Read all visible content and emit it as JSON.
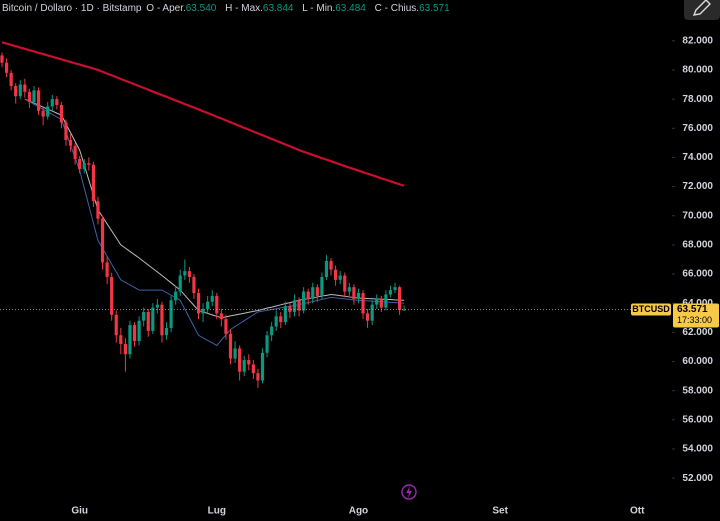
{
  "chart_data": {
    "type": "candlestick",
    "header": {
      "symbol": "Bitcoin / Dollaro · 1D · Bitstamp",
      "fields": [
        {
          "label": "O - Aper.",
          "value": "63.540"
        },
        {
          "label": "H - Max.",
          "value": "63.844"
        },
        {
          "label": "L - Min.",
          "value": "63.484"
        },
        {
          "label": "C - Chius.",
          "value": "63.571"
        }
      ]
    },
    "price_tag": {
      "symbol": "BTCUSD",
      "price": "63.571",
      "countdown": "17:33:00"
    },
    "up_color": "#089981",
    "down_color": "#f23645",
    "grid": false,
    "ylim": [
      50500,
      84800
    ],
    "yticks": [
      {
        "value": 52000,
        "label": "52.000"
      },
      {
        "value": 54000,
        "label": "54.000"
      },
      {
        "value": 56000,
        "label": "56.000"
      },
      {
        "value": 58000,
        "label": "58.000"
      },
      {
        "value": 60000,
        "label": "60.000"
      },
      {
        "value": 62000,
        "label": "62.000"
      },
      {
        "value": 64000,
        "label": "64.000"
      },
      {
        "value": 66000,
        "label": "66.000"
      },
      {
        "value": 68000,
        "label": "68.000"
      },
      {
        "value": 70000,
        "label": "70.000"
      },
      {
        "value": 72000,
        "label": "72.000"
      },
      {
        "value": 74000,
        "label": "74.000"
      },
      {
        "value": 76000,
        "label": "76.000"
      },
      {
        "value": 78000,
        "label": "78.000"
      },
      {
        "value": 80000,
        "label": "80.000"
      },
      {
        "value": 82000,
        "label": "82.000"
      }
    ],
    "categories": [
      null,
      null,
      null,
      null,
      null,
      null,
      null,
      null,
      null,
      null,
      null,
      null,
      null,
      null,
      null,
      null,
      null,
      "Giu",
      null,
      null,
      null,
      null,
      null,
      null,
      null,
      null,
      null,
      null,
      null,
      null,
      null,
      null,
      null,
      null,
      null,
      null,
      null,
      null,
      null,
      null,
      null,
      null,
      null,
      null,
      null,
      null,
      null,
      "Lug",
      null,
      null,
      null,
      null,
      null,
      null,
      null,
      null,
      null,
      null,
      null,
      null,
      null,
      null,
      null,
      null,
      null,
      null,
      null,
      null,
      null,
      null,
      null,
      null,
      null,
      null,
      null,
      null,
      null,
      null,
      "Ago",
      null,
      null,
      null,
      null,
      null,
      null,
      null,
      null,
      null,
      null,
      null,
      null,
      null,
      null,
      null,
      null,
      null,
      null,
      null,
      null,
      null,
      null,
      null,
      null,
      null,
      null,
      null,
      null,
      null,
      null,
      "Set",
      null,
      null,
      null,
      null,
      null,
      null,
      null,
      null,
      null,
      null,
      null,
      null,
      null,
      null,
      null,
      null,
      null,
      null,
      null,
      null,
      null,
      null,
      null,
      null,
      null,
      null,
      null,
      null,
      null,
      "Ott",
      null,
      null,
      null,
      null,
      null,
      null
    ],
    "open": [
      81000,
      80500,
      79800,
      78900,
      78200,
      79000,
      78500,
      77800,
      78600,
      77200,
      76800,
      77500,
      78000,
      77600,
      76400,
      75200,
      74800,
      73900,
      73200,
      73600,
      73500,
      71000,
      69800,
      66800,
      65800,
      63200,
      61800,
      61200,
      60500,
      62500,
      61400,
      62800,
      63400,
      62100,
      63700,
      63900,
      61800,
      62300,
      64200,
      64800,
      65900,
      66200,
      65800,
      64700,
      63300,
      63600,
      64100,
      64500,
      63300,
      62900,
      61900,
      60200,
      60900,
      59300,
      60100,
      59800,
      59200,
      58700,
      60600,
      61800,
      62400,
      63100,
      62700,
      63800,
      63400,
      64200,
      63500,
      64800,
      64300,
      65100,
      64500,
      65800,
      66900,
      66300,
      65600,
      65900,
      64800,
      65100,
      64300,
      64700,
      63300,
      62800,
      63900,
      64300,
      63700,
      64600,
      64900,
      65100,
      63540,
      null,
      null,
      null,
      null,
      null,
      null,
      null,
      null,
      null,
      null,
      null,
      null,
      null,
      null,
      null,
      null,
      null,
      null,
      null,
      null,
      null,
      null,
      null,
      null,
      null,
      null,
      null,
      null,
      null,
      null,
      null,
      null,
      null,
      null,
      null,
      null,
      null,
      null,
      null,
      null,
      null,
      null,
      null,
      null,
      null,
      null,
      null,
      null,
      null,
      null,
      null,
      null,
      null,
      null,
      null,
      null,
      null
    ],
    "high": [
      81200,
      80800,
      80000,
      79100,
      79300,
      79400,
      78700,
      78900,
      78800,
      77500,
      77800,
      78300,
      78200,
      77800,
      76600,
      75600,
      75000,
      74100,
      73900,
      74000,
      73700,
      71300,
      70000,
      67200,
      66100,
      63500,
      62300,
      61600,
      62800,
      62700,
      63100,
      63700,
      63600,
      64000,
      64300,
      64100,
      62700,
      64500,
      65200,
      66300,
      67000,
      66500,
      66000,
      65000,
      64000,
      64500,
      64900,
      64700,
      63600,
      63200,
      62200,
      61400,
      61100,
      60400,
      60500,
      60100,
      59500,
      60900,
      62100,
      62700,
      63500,
      63400,
      64100,
      64000,
      64600,
      64400,
      65100,
      65000,
      65400,
      65300,
      66100,
      67300,
      67100,
      66600,
      66200,
      66100,
      65400,
      65300,
      65000,
      64900,
      63600,
      64200,
      64600,
      64500,
      64900,
      65200,
      65400,
      65200,
      63844,
      null,
      null,
      null,
      null,
      null,
      null,
      null,
      null,
      null,
      null,
      null,
      null,
      null,
      null,
      null,
      null,
      null,
      null,
      null,
      null,
      null,
      null,
      null,
      null,
      null,
      null,
      null,
      null,
      null,
      null,
      null,
      null,
      null,
      null,
      null,
      null,
      null,
      null,
      null,
      null,
      null,
      null,
      null,
      null,
      null,
      null,
      null,
      null,
      null,
      null,
      null,
      null,
      null,
      null,
      null,
      null,
      null
    ],
    "low": [
      80200,
      79500,
      78600,
      77700,
      78000,
      78100,
      77400,
      77600,
      76900,
      76200,
      76600,
      77200,
      77300,
      76000,
      74800,
      74400,
      73500,
      72900,
      72900,
      73100,
      70600,
      69400,
      66300,
      65300,
      62800,
      61300,
      60500,
      59300,
      60200,
      61000,
      61100,
      62400,
      61700,
      61900,
      63300,
      61300,
      61500,
      62000,
      63900,
      64500,
      65600,
      65400,
      64300,
      62900,
      62700,
      63300,
      63800,
      62900,
      62400,
      61500,
      59800,
      59900,
      58700,
      59000,
      59400,
      58800,
      58200,
      58500,
      60300,
      61400,
      62100,
      62300,
      62500,
      63000,
      63100,
      63100,
      63300,
      63900,
      64000,
      64100,
      64300,
      65600,
      65900,
      65200,
      65300,
      64400,
      64500,
      63900,
      64000,
      62900,
      62300,
      62500,
      63600,
      63400,
      63500,
      64400,
      64700,
      63200,
      63484,
      null,
      null,
      null,
      null,
      null,
      null,
      null,
      null,
      null,
      null,
      null,
      null,
      null,
      null,
      null,
      null,
      null,
      null,
      null,
      null,
      null,
      null,
      null,
      null,
      null,
      null,
      null,
      null,
      null,
      null,
      null,
      null,
      null,
      null,
      null,
      null,
      null,
      null,
      null,
      null,
      null,
      null,
      null,
      null,
      null,
      null,
      null,
      null,
      null,
      null,
      null,
      null,
      null,
      null,
      null,
      null,
      null
    ],
    "close": [
      80500,
      79800,
      78900,
      78200,
      79000,
      78500,
      77800,
      78600,
      77200,
      76800,
      77500,
      78000,
      77600,
      76400,
      75200,
      74800,
      73900,
      73200,
      73600,
      73500,
      71000,
      69800,
      66800,
      65800,
      63200,
      61800,
      61200,
      60500,
      62500,
      61400,
      62800,
      63400,
      62100,
      63700,
      63900,
      61800,
      62300,
      64200,
      64800,
      65900,
      66200,
      65800,
      64700,
      63300,
      63600,
      64100,
      64500,
      63300,
      62900,
      61900,
      60200,
      60900,
      59300,
      60100,
      59800,
      59200,
      58700,
      60600,
      61800,
      62400,
      63100,
      62700,
      63800,
      63400,
      64200,
      63500,
      64800,
      64300,
      65100,
      64500,
      65800,
      66900,
      66300,
      65600,
      65900,
      64800,
      65100,
      64300,
      64700,
      63300,
      62800,
      63900,
      64300,
      63700,
      64600,
      64900,
      65100,
      63540,
      63571,
      null,
      null,
      null,
      null,
      null,
      null,
      null,
      null,
      null,
      null,
      null,
      null,
      null,
      null,
      null,
      null,
      null,
      null,
      null,
      null,
      null,
      null,
      null,
      null,
      null,
      null,
      null,
      null,
      null,
      null,
      null,
      null,
      null,
      null,
      null,
      null,
      null,
      null,
      null,
      null,
      null,
      null,
      null,
      null,
      null,
      null,
      null,
      null,
      null,
      null,
      null,
      null,
      null,
      null,
      null,
      null,
      null
    ],
    "moving_averages": [
      {
        "color": "#c8102e",
        "width": 2.2,
        "values": [
          81900,
          81810,
          81720,
          81630,
          81540,
          81450,
          81360,
          81270,
          81180,
          81090,
          81000,
          80910,
          80820,
          80730,
          80640,
          80550,
          80460,
          80370,
          80280,
          80190,
          80100,
          80000,
          79880,
          79750,
          79630,
          79510,
          79380,
          79260,
          79140,
          79020,
          78890,
          78770,
          78650,
          78520,
          78400,
          78280,
          78160,
          78030,
          77910,
          77790,
          77660,
          77540,
          77420,
          77300,
          77170,
          77050,
          76920,
          76790,
          76670,
          76540,
          76410,
          76290,
          76160,
          76030,
          75910,
          75780,
          75650,
          75530,
          75400,
          75270,
          75150,
          75020,
          74890,
          74770,
          74640,
          74500,
          74390,
          74280,
          74170,
          74060,
          73950,
          73850,
          73740,
          73630,
          73520,
          73410,
          73300,
          73200,
          73100,
          72990,
          72890,
          72780,
          72680,
          72570,
          72470,
          72370,
          72260,
          72160,
          72050,
          null,
          null,
          null,
          null,
          null,
          null,
          null,
          null,
          null,
          null,
          null,
          null,
          null,
          null,
          null,
          null,
          null,
          null,
          null,
          null,
          null,
          null,
          null,
          null,
          null,
          null,
          null,
          null,
          null,
          null,
          null,
          null,
          null,
          null,
          null,
          null,
          null,
          null,
          null,
          null,
          null,
          null,
          null,
          null,
          null,
          null,
          null,
          null,
          null,
          null,
          null,
          null,
          null,
          null,
          null,
          null,
          null
        ]
      },
      {
        "color": "#bdbdbd",
        "width": 1,
        "values": [
          null,
          null,
          null,
          null,
          null,
          78000,
          77860,
          77730,
          77590,
          77450,
          77310,
          77180,
          77040,
          76900,
          76300,
          75700,
          75100,
          74500,
          73480,
          72450,
          71430,
          70400,
          69920,
          69440,
          68960,
          68480,
          68000,
          67780,
          67550,
          67330,
          67100,
          66860,
          66620,
          66380,
          66140,
          65900,
          65650,
          65400,
          65150,
          64900,
          64550,
          64200,
          63850,
          63500,
          63400,
          63300,
          63200,
          63100,
          63000,
          63060,
          63130,
          63190,
          63250,
          63310,
          63380,
          63440,
          63500,
          63580,
          63660,
          63730,
          63810,
          63890,
          63970,
          64040,
          64120,
          64200,
          64260,
          64310,
          64370,
          64430,
          64490,
          64540,
          64600,
          64560,
          64520,
          64480,
          64430,
          64390,
          64350,
          64340,
          64320,
          64310,
          64290,
          64280,
          64260,
          64250,
          64230,
          64220,
          64200,
          null,
          null,
          null,
          null,
          null,
          null,
          null,
          null,
          null,
          null,
          null,
          null,
          null,
          null,
          null,
          null,
          null,
          null,
          null,
          null,
          null,
          null,
          null,
          null,
          null,
          null,
          null,
          null,
          null,
          null,
          null,
          null,
          null,
          null,
          null,
          null,
          null,
          null,
          null,
          null,
          null,
          null,
          null,
          null,
          null,
          null,
          null,
          null,
          null,
          null,
          null,
          null,
          null,
          null,
          null,
          null,
          null
        ]
      },
      {
        "color": "#3f5fa8",
        "width": 1,
        "values": [
          null,
          null,
          null,
          null,
          null,
          78000,
          77830,
          77650,
          77480,
          77300,
          77130,
          76950,
          76780,
          76600,
          75730,
          74850,
          73980,
          73100,
          71900,
          70700,
          69500,
          68300,
          67760,
          67220,
          66680,
          66140,
          65600,
          65430,
          65250,
          65080,
          64900,
          64900,
          64900,
          64900,
          64900,
          64900,
          64730,
          64550,
          64380,
          64200,
          63600,
          63000,
          62400,
          61800,
          61630,
          61450,
          61280,
          61100,
          61470,
          61830,
          62200,
          62400,
          62600,
          62800,
          63000,
          63200,
          63400,
          63460,
          63510,
          63570,
          63620,
          63680,
          63730,
          63790,
          63840,
          63900,
          63970,
          64040,
          64110,
          64190,
          64260,
          64330,
          64400,
          64370,
          64330,
          64300,
          64270,
          64230,
          64200,
          64180,
          64160,
          64140,
          64120,
          64100,
          64080,
          64060,
          64040,
          64020,
          64000,
          null,
          null,
          null,
          null,
          null,
          null,
          null,
          null,
          null,
          null,
          null,
          null,
          null,
          null,
          null,
          null,
          null,
          null,
          null,
          null,
          null,
          null,
          null,
          null,
          null,
          null,
          null,
          null,
          null,
          null,
          null,
          null,
          null,
          null,
          null,
          null,
          null,
          null,
          null,
          null,
          null,
          null,
          null,
          null,
          null,
          null,
          null,
          null,
          null,
          null,
          null,
          null,
          null,
          null,
          null,
          null,
          null
        ]
      }
    ]
  }
}
